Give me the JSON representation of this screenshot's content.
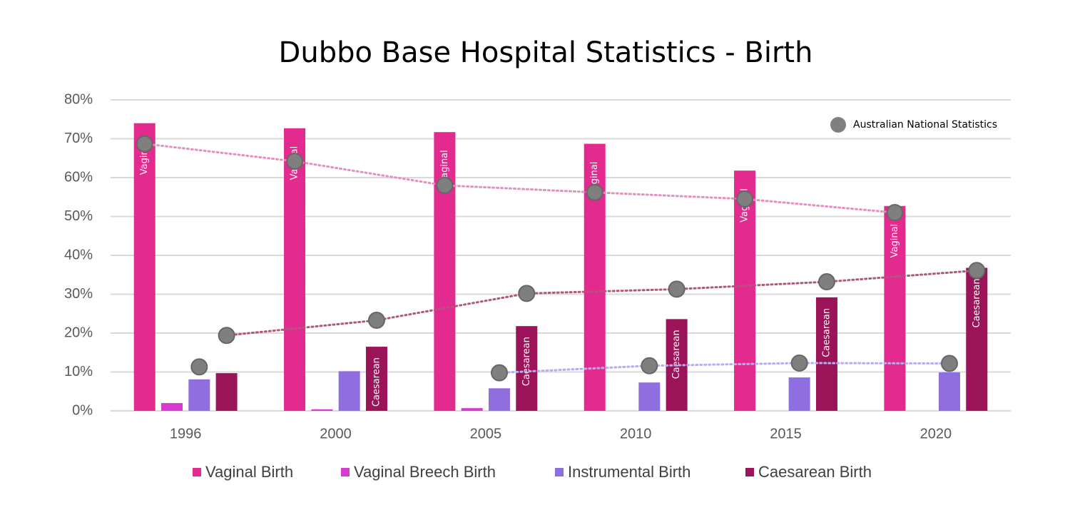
{
  "chart_data": {
    "type": "bar",
    "title": "Dubbo Base Hospital Statistics - Birth",
    "categories": [
      "1996",
      "2000",
      "2005",
      "2010",
      "2015",
      "2020"
    ],
    "series": [
      {
        "name": "Vaginal Birth",
        "color": "#e32a8f",
        "values": [
          74,
          72.7,
          71.7,
          68.7,
          61.8,
          52.7
        ],
        "labels": [
          "Vaginal",
          "Vaginal",
          "Vaginal",
          "Vaginal",
          "Vaginal",
          "Vaginal"
        ]
      },
      {
        "name": "Vaginal Breech Birth",
        "color": "#d63bd0",
        "values": [
          2,
          0.4,
          0.7,
          0,
          0,
          0
        ]
      },
      {
        "name": "Instrumental Birth",
        "color": "#8f6fe0",
        "values": [
          8.1,
          10.2,
          5.8,
          7.3,
          8.6,
          9.9
        ]
      },
      {
        "name": "Caesarean Birth",
        "color": "#9b1358",
        "values": [
          9.7,
          16.5,
          21.8,
          23.6,
          29.2,
          36.8
        ],
        "labels": [
          null,
          "Caesarean",
          "Caesarean",
          "Caesarean",
          "Caesarean",
          "Caesarean"
        ]
      }
    ],
    "national": {
      "name": "Australian National Statistics",
      "color": "#7f7f7f",
      "series": [
        {
          "of": 0,
          "color": "#e68fbf",
          "values": [
            68.7,
            64.2,
            58,
            56.2,
            54.5,
            51
          ]
        },
        {
          "of": 2,
          "color": "#b9acec",
          "values": [
            11.3,
            null,
            9.8,
            11.6,
            12.3,
            12.2
          ]
        },
        {
          "of": 3,
          "color": "#b0577f",
          "values": [
            19.4,
            23.3,
            30.2,
            31.3,
            33.2,
            36.1
          ]
        }
      ]
    },
    "ylim": [
      0,
      80
    ],
    "yticks": [
      {
        "value": 0,
        "label": "0%"
      },
      {
        "value": 10,
        "label": "10%"
      },
      {
        "value": 20,
        "label": "20%"
      },
      {
        "value": 30,
        "label": "30%"
      },
      {
        "value": 40,
        "label": "40%"
      },
      {
        "value": 50,
        "label": "50%"
      },
      {
        "value": 60,
        "label": "60%"
      },
      {
        "value": 70,
        "label": "70%"
      },
      {
        "value": 80,
        "label": "80%"
      }
    ],
    "grid": true,
    "legend": "bottom"
  }
}
